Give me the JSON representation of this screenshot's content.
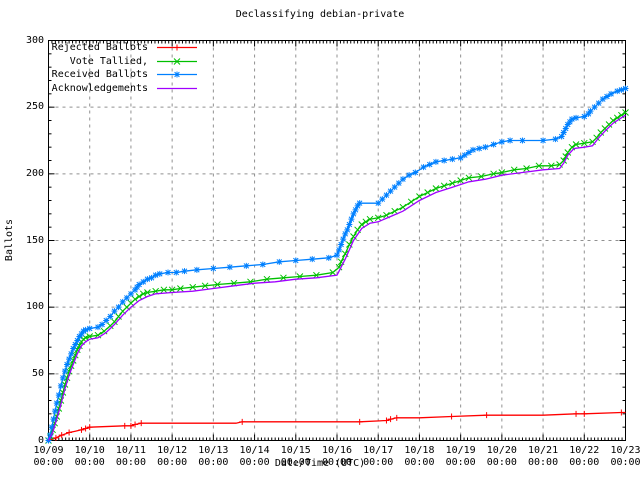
{
  "title": "Declassifying debian-private",
  "chart_data": {
    "type": "line",
    "title": "Declassifying debian-private",
    "xlabel": "Date/Time (UTC)",
    "ylabel": "Ballots",
    "ylim": [
      0,
      300
    ],
    "y_ticks": [
      0,
      50,
      100,
      150,
      200,
      250,
      300
    ],
    "y_minor_step": 10,
    "x_range_days": [
      0,
      14
    ],
    "x_minor_per_day": 12,
    "x_tick_dates": [
      "10/09",
      "10/10",
      "10/11",
      "10/12",
      "10/13",
      "10/14",
      "10/15",
      "10/16",
      "10/17",
      "10/18",
      "10/19",
      "10/20",
      "10/21",
      "10/22",
      "10/23"
    ],
    "x_tick_time": "00:00",
    "grid": true,
    "grid_color": "#909090",
    "border_color": "#000000",
    "legend_position": "top-left",
    "series": [
      {
        "name": "Rejected Ballots",
        "color": "#ff0000",
        "marker": "plus",
        "points": [
          [
            0,
            0
          ],
          [
            0.1,
            1
          ],
          [
            0.18,
            2
          ],
          [
            0.25,
            3
          ],
          [
            0.32,
            4
          ],
          [
            0.42,
            5
          ],
          [
            0.5,
            6
          ],
          [
            0.65,
            7
          ],
          [
            0.8,
            8
          ],
          [
            0.9,
            9
          ],
          [
            1.0,
            10
          ],
          [
            1.85,
            11
          ],
          [
            2.0,
            11
          ],
          [
            2.1,
            12
          ],
          [
            2.25,
            13
          ],
          [
            4.55,
            13
          ],
          [
            4.7,
            14
          ],
          [
            7.55,
            14
          ],
          [
            8.2,
            15
          ],
          [
            8.3,
            16
          ],
          [
            8.45,
            17
          ],
          [
            9.0,
            17
          ],
          [
            9.78,
            18
          ],
          [
            10.63,
            19
          ],
          [
            12.0,
            19
          ],
          [
            12.8,
            20
          ],
          [
            13.0,
            20
          ],
          [
            13.9,
            21
          ],
          [
            14,
            21
          ]
        ],
        "markers": [
          [
            0.18,
            2
          ],
          [
            0.32,
            4
          ],
          [
            0.5,
            6
          ],
          [
            0.8,
            8
          ],
          [
            0.9,
            9
          ],
          [
            1.0,
            10
          ],
          [
            1.85,
            11
          ],
          [
            2.0,
            11
          ],
          [
            2.1,
            12
          ],
          [
            2.25,
            13
          ],
          [
            4.7,
            14
          ],
          [
            7.55,
            14
          ],
          [
            8.2,
            15
          ],
          [
            8.3,
            16
          ],
          [
            8.45,
            17
          ],
          [
            9.78,
            18
          ],
          [
            10.63,
            19
          ],
          [
            12.8,
            20
          ],
          [
            13.0,
            20
          ],
          [
            13.9,
            21
          ]
        ]
      },
      {
        "name": "Vote Tallied,",
        "color": "#00c000",
        "marker": "cross",
        "points": [
          [
            0,
            0
          ],
          [
            0.05,
            3
          ],
          [
            0.1,
            8
          ],
          [
            0.15,
            13
          ],
          [
            0.2,
            18
          ],
          [
            0.25,
            24
          ],
          [
            0.3,
            30
          ],
          [
            0.35,
            36
          ],
          [
            0.4,
            42
          ],
          [
            0.45,
            47
          ],
          [
            0.5,
            52
          ],
          [
            0.55,
            56
          ],
          [
            0.6,
            60
          ],
          [
            0.65,
            64
          ],
          [
            0.7,
            68
          ],
          [
            0.75,
            71
          ],
          [
            0.8,
            74
          ],
          [
            0.85,
            76
          ],
          [
            0.9,
            77
          ],
          [
            1.0,
            78
          ],
          [
            1.2,
            79
          ],
          [
            1.35,
            82
          ],
          [
            1.5,
            86
          ],
          [
            1.6,
            89
          ],
          [
            1.7,
            93
          ],
          [
            1.8,
            97
          ],
          [
            1.9,
            100
          ],
          [
            2.0,
            103
          ],
          [
            2.1,
            106
          ],
          [
            2.2,
            108
          ],
          [
            2.3,
            110
          ],
          [
            2.4,
            111
          ],
          [
            2.6,
            112
          ],
          [
            2.8,
            113
          ],
          [
            3.0,
            113
          ],
          [
            3.2,
            114
          ],
          [
            3.5,
            115
          ],
          [
            3.8,
            116
          ],
          [
            4.1,
            117
          ],
          [
            4.5,
            118
          ],
          [
            4.9,
            119
          ],
          [
            5.3,
            121
          ],
          [
            5.7,
            122
          ],
          [
            6.1,
            123
          ],
          [
            6.5,
            124
          ],
          [
            6.9,
            126
          ],
          [
            7.05,
            130
          ],
          [
            7.1,
            134
          ],
          [
            7.2,
            140
          ],
          [
            7.3,
            147
          ],
          [
            7.4,
            153
          ],
          [
            7.5,
            158
          ],
          [
            7.6,
            162
          ],
          [
            7.7,
            164
          ],
          [
            7.8,
            166
          ],
          [
            8.0,
            167
          ],
          [
            8.2,
            169
          ],
          [
            8.4,
            172
          ],
          [
            8.6,
            175
          ],
          [
            8.8,
            179
          ],
          [
            9.0,
            183
          ],
          [
            9.2,
            186
          ],
          [
            9.4,
            189
          ],
          [
            9.6,
            191
          ],
          [
            9.8,
            193
          ],
          [
            10.0,
            195
          ],
          [
            10.2,
            197
          ],
          [
            10.5,
            198
          ],
          [
            10.8,
            200
          ],
          [
            11.0,
            201
          ],
          [
            11.3,
            203
          ],
          [
            11.6,
            204
          ],
          [
            11.9,
            206
          ],
          [
            12.2,
            206
          ],
          [
            12.4,
            207
          ],
          [
            12.5,
            210
          ],
          [
            12.55,
            213
          ],
          [
            12.6,
            216
          ],
          [
            12.7,
            220
          ],
          [
            12.8,
            222
          ],
          [
            13.0,
            223
          ],
          [
            13.2,
            224
          ],
          [
            13.3,
            227
          ],
          [
            13.4,
            231
          ],
          [
            13.5,
            234
          ],
          [
            13.6,
            237
          ],
          [
            13.7,
            240
          ],
          [
            13.8,
            242
          ],
          [
            13.9,
            244
          ],
          [
            14,
            246
          ]
        ]
      },
      {
        "name": "Received Ballots",
        "color": "#0080ff",
        "marker": "asterisk",
        "points": [
          [
            0,
            0
          ],
          [
            0.04,
            4
          ],
          [
            0.08,
            10
          ],
          [
            0.12,
            16
          ],
          [
            0.16,
            22
          ],
          [
            0.2,
            28
          ],
          [
            0.25,
            34
          ],
          [
            0.3,
            41
          ],
          [
            0.35,
            47
          ],
          [
            0.4,
            52
          ],
          [
            0.45,
            57
          ],
          [
            0.5,
            61
          ],
          [
            0.55,
            65
          ],
          [
            0.6,
            69
          ],
          [
            0.65,
            72
          ],
          [
            0.7,
            75
          ],
          [
            0.75,
            78
          ],
          [
            0.8,
            80
          ],
          [
            0.85,
            82
          ],
          [
            0.9,
            83
          ],
          [
            1.0,
            84
          ],
          [
            1.2,
            85
          ],
          [
            1.3,
            87
          ],
          [
            1.4,
            90
          ],
          [
            1.5,
            93
          ],
          [
            1.6,
            97
          ],
          [
            1.7,
            100
          ],
          [
            1.8,
            104
          ],
          [
            1.9,
            107
          ],
          [
            2.0,
            110
          ],
          [
            2.1,
            113
          ],
          [
            2.15,
            115
          ],
          [
            2.2,
            117
          ],
          [
            2.3,
            119
          ],
          [
            2.4,
            121
          ],
          [
            2.5,
            122
          ],
          [
            2.6,
            124
          ],
          [
            2.7,
            125
          ],
          [
            2.9,
            126
          ],
          [
            3.1,
            126
          ],
          [
            3.3,
            127
          ],
          [
            3.6,
            128
          ],
          [
            4.0,
            129
          ],
          [
            4.4,
            130
          ],
          [
            4.8,
            131
          ],
          [
            5.2,
            132
          ],
          [
            5.6,
            134
          ],
          [
            6.0,
            135
          ],
          [
            6.4,
            136
          ],
          [
            6.8,
            137
          ],
          [
            7.0,
            139
          ],
          [
            7.05,
            143
          ],
          [
            7.1,
            147
          ],
          [
            7.15,
            151
          ],
          [
            7.2,
            155
          ],
          [
            7.25,
            158
          ],
          [
            7.3,
            162
          ],
          [
            7.35,
            166
          ],
          [
            7.4,
            170
          ],
          [
            7.45,
            173
          ],
          [
            7.5,
            176
          ],
          [
            7.55,
            178
          ],
          [
            8.0,
            178
          ],
          [
            8.1,
            181
          ],
          [
            8.2,
            184
          ],
          [
            8.3,
            187
          ],
          [
            8.4,
            190
          ],
          [
            8.5,
            193
          ],
          [
            8.6,
            196
          ],
          [
            8.75,
            199
          ],
          [
            8.9,
            201
          ],
          [
            9.1,
            205
          ],
          [
            9.25,
            207
          ],
          [
            9.4,
            209
          ],
          [
            9.6,
            210
          ],
          [
            9.8,
            211
          ],
          [
            10.0,
            212
          ],
          [
            10.1,
            214
          ],
          [
            10.2,
            216
          ],
          [
            10.3,
            218
          ],
          [
            10.45,
            219
          ],
          [
            10.6,
            220
          ],
          [
            10.8,
            222
          ],
          [
            11.0,
            224
          ],
          [
            11.2,
            225
          ],
          [
            11.5,
            225
          ],
          [
            12.0,
            225
          ],
          [
            12.3,
            226
          ],
          [
            12.45,
            228
          ],
          [
            12.5,
            231
          ],
          [
            12.55,
            234
          ],
          [
            12.6,
            237
          ],
          [
            12.65,
            239
          ],
          [
            12.7,
            241
          ],
          [
            12.8,
            242
          ],
          [
            13.0,
            243
          ],
          [
            13.1,
            245
          ],
          [
            13.15,
            247
          ],
          [
            13.25,
            250
          ],
          [
            13.35,
            253
          ],
          [
            13.45,
            256
          ],
          [
            13.55,
            258
          ],
          [
            13.65,
            260
          ],
          [
            13.8,
            262
          ],
          [
            13.9,
            263
          ],
          [
            14,
            264
          ]
        ]
      },
      {
        "name": "Acknowledgements",
        "color": "#a000ff",
        "marker": "none",
        "points": [
          [
            0,
            0
          ],
          [
            0.1,
            6
          ],
          [
            0.2,
            16
          ],
          [
            0.3,
            27
          ],
          [
            0.4,
            39
          ],
          [
            0.5,
            49
          ],
          [
            0.6,
            57
          ],
          [
            0.7,
            65
          ],
          [
            0.8,
            71
          ],
          [
            0.9,
            74
          ],
          [
            1.0,
            76
          ],
          [
            1.2,
            77
          ],
          [
            1.4,
            81
          ],
          [
            1.6,
            87
          ],
          [
            1.8,
            94
          ],
          [
            2.0,
            100
          ],
          [
            2.2,
            105
          ],
          [
            2.4,
            108
          ],
          [
            2.6,
            110
          ],
          [
            3.0,
            111
          ],
          [
            3.5,
            112
          ],
          [
            4.0,
            114
          ],
          [
            4.5,
            116
          ],
          [
            5.0,
            118
          ],
          [
            5.5,
            119
          ],
          [
            6.0,
            121
          ],
          [
            6.5,
            122
          ],
          [
            7.0,
            124
          ],
          [
            7.2,
            136
          ],
          [
            7.4,
            150
          ],
          [
            7.6,
            159
          ],
          [
            7.8,
            163
          ],
          [
            8.0,
            164
          ],
          [
            8.3,
            168
          ],
          [
            8.6,
            172
          ],
          [
            9.0,
            180
          ],
          [
            9.4,
            186
          ],
          [
            9.8,
            190
          ],
          [
            10.2,
            194
          ],
          [
            10.6,
            196
          ],
          [
            11.0,
            199
          ],
          [
            11.5,
            201
          ],
          [
            12.0,
            203
          ],
          [
            12.4,
            204
          ],
          [
            12.5,
            208
          ],
          [
            12.6,
            214
          ],
          [
            12.75,
            219
          ],
          [
            13.0,
            220
          ],
          [
            13.2,
            221
          ],
          [
            13.35,
            227
          ],
          [
            13.5,
            232
          ],
          [
            13.7,
            238
          ],
          [
            13.9,
            242
          ],
          [
            14,
            244
          ]
        ]
      }
    ]
  }
}
